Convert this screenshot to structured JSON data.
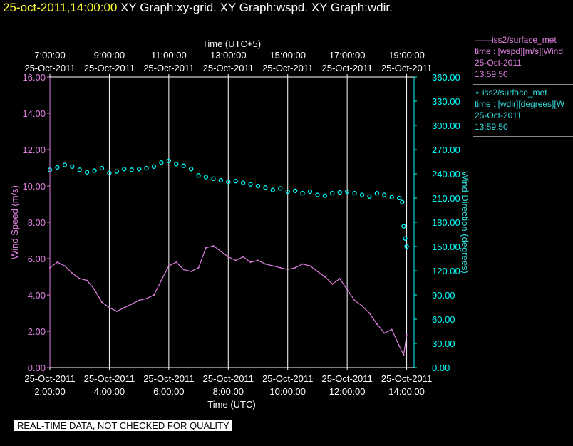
{
  "header": {
    "timestamp": "25-oct-2011,14:00:00",
    "graphs": "XY Graph:xy-grid.  XY Graph:wspd.  XY Graph:wdir."
  },
  "legend": {
    "wspd": {
      "line1": "——iss2/surface_met",
      "line2": "time : [wspd][m/s][Wind",
      "line3": "25-Oct-2011",
      "line4": "13:59:50"
    },
    "wdir": {
      "line1": "∘ iss2/surface_met",
      "line2": "time : [wdir][degrees][W",
      "line3": "25-Oct-2011",
      "line4": "13:59:50"
    }
  },
  "footer": {
    "quality_note": "REAL-TIME DATA, NOT CHECKED FOR QUALITY"
  },
  "colors": {
    "wspd": "#e080e0",
    "wdir": "#00ffff",
    "background": "#000000",
    "grid": "#ffffff",
    "title": "#ffff33"
  },
  "chart_data": {
    "type": "line",
    "xlabel_bottom": "Time (UTC)",
    "xlabel_top": "Time (UTC+5)",
    "ylabel_left": "Wind Speed (m/s)",
    "ylabel_right": "Wind Direction (degrees)",
    "x_range_hours": [
      2,
      14.25
    ],
    "ylim_left": [
      0,
      16
    ],
    "ylim_right": [
      0,
      360
    ],
    "grid": "vertical",
    "bottom_ticks": [
      {
        "hour": 2,
        "date": "25-Oct-2011",
        "time": "2:00:00"
      },
      {
        "hour": 4,
        "date": "25-Oct-2011",
        "time": "4:00:00"
      },
      {
        "hour": 6,
        "date": "25-Oct-2011",
        "time": "6:00:00"
      },
      {
        "hour": 8,
        "date": "25-Oct-2011",
        "time": "8:00:00"
      },
      {
        "hour": 10,
        "date": "25-Oct-2011",
        "time": "10:00:00"
      },
      {
        "hour": 12,
        "date": "25-Oct-2011",
        "time": "12:00:00"
      },
      {
        "hour": 14,
        "date": "25-Oct-2011",
        "time": "14:00:00"
      }
    ],
    "top_ticks": [
      {
        "hour": 2,
        "time": "7:00:00",
        "date": "25-Oct-2011"
      },
      {
        "hour": 4,
        "time": "9:00:00",
        "date": "25-Oct-2011"
      },
      {
        "hour": 6,
        "time": "11:00:00",
        "date": "25-Oct-2011"
      },
      {
        "hour": 8,
        "time": "13:00:00",
        "date": "25-Oct-2011"
      },
      {
        "hour": 10,
        "time": "15:00:00",
        "date": "25-Oct-2011"
      },
      {
        "hour": 12,
        "time": "17:00:00",
        "date": "25-Oct-2011"
      },
      {
        "hour": 14,
        "time": "19:00:00",
        "date": "25-Oct-2011"
      }
    ],
    "left_ticks": [
      "0.00",
      "2.00",
      "4.00",
      "6.00",
      "8.00",
      "10.00",
      "12.00",
      "14.00",
      "16.00"
    ],
    "right_ticks": [
      "0.00",
      "30.00",
      "60.00",
      "90.00",
      "120.00",
      "150.00",
      "180.00",
      "210.00",
      "240.00",
      "270.00",
      "300.00",
      "330.00",
      "360.00"
    ],
    "series": [
      {
        "name": "iss2/surface_met wspd",
        "axis": "left",
        "style": "line",
        "x": [
          2.0,
          2.25,
          2.5,
          2.75,
          3.0,
          3.25,
          3.5,
          3.75,
          4.0,
          4.25,
          4.5,
          4.75,
          5.0,
          5.25,
          5.5,
          5.75,
          6.0,
          6.25,
          6.5,
          6.75,
          7.0,
          7.25,
          7.5,
          7.75,
          8.0,
          8.25,
          8.5,
          8.75,
          9.0,
          9.25,
          9.5,
          9.75,
          10.0,
          10.25,
          10.5,
          10.75,
          11.0,
          11.25,
          11.5,
          11.75,
          12.0,
          12.25,
          12.5,
          12.75,
          13.0,
          13.25,
          13.5,
          13.75,
          13.9,
          14.0
        ],
        "y": [
          5.5,
          5.8,
          5.6,
          5.2,
          4.9,
          4.8,
          4.3,
          3.6,
          3.3,
          3.1,
          3.3,
          3.5,
          3.7,
          3.8,
          4.0,
          4.8,
          5.6,
          5.8,
          5.4,
          5.3,
          5.5,
          6.6,
          6.7,
          6.4,
          6.1,
          5.9,
          6.1,
          5.8,
          5.9,
          5.7,
          5.6,
          5.5,
          5.4,
          5.5,
          5.7,
          5.6,
          5.3,
          5.0,
          4.6,
          4.9,
          4.3,
          3.7,
          3.4,
          3.0,
          2.4,
          1.9,
          2.1,
          1.2,
          0.7,
          1.8
        ]
      },
      {
        "name": "iss2/surface_met wdir",
        "axis": "right",
        "style": "markers",
        "x": [
          2.0,
          2.25,
          2.5,
          2.75,
          3.0,
          3.25,
          3.5,
          3.75,
          4.0,
          4.25,
          4.5,
          4.75,
          5.0,
          5.25,
          5.5,
          5.75,
          6.0,
          6.25,
          6.5,
          6.75,
          7.0,
          7.25,
          7.5,
          7.75,
          8.0,
          8.25,
          8.5,
          8.75,
          9.0,
          9.25,
          9.5,
          9.75,
          10.0,
          10.25,
          10.5,
          10.75,
          11.0,
          11.25,
          11.5,
          11.75,
          12.0,
          12.25,
          12.5,
          12.75,
          13.0,
          13.25,
          13.5,
          13.75,
          13.85,
          13.9,
          13.95,
          14.0
        ],
        "y": [
          245,
          248,
          251,
          249,
          245,
          242,
          244,
          247,
          241,
          243,
          246,
          245,
          246,
          247,
          249,
          254,
          256,
          252,
          250,
          246,
          238,
          236,
          234,
          232,
          230,
          231,
          229,
          227,
          225,
          223,
          220,
          222,
          218,
          219,
          216,
          218,
          214,
          213,
          216,
          217,
          218,
          216,
          214,
          212,
          216,
          214,
          211,
          210,
          205,
          175,
          160,
          150
        ]
      }
    ]
  }
}
